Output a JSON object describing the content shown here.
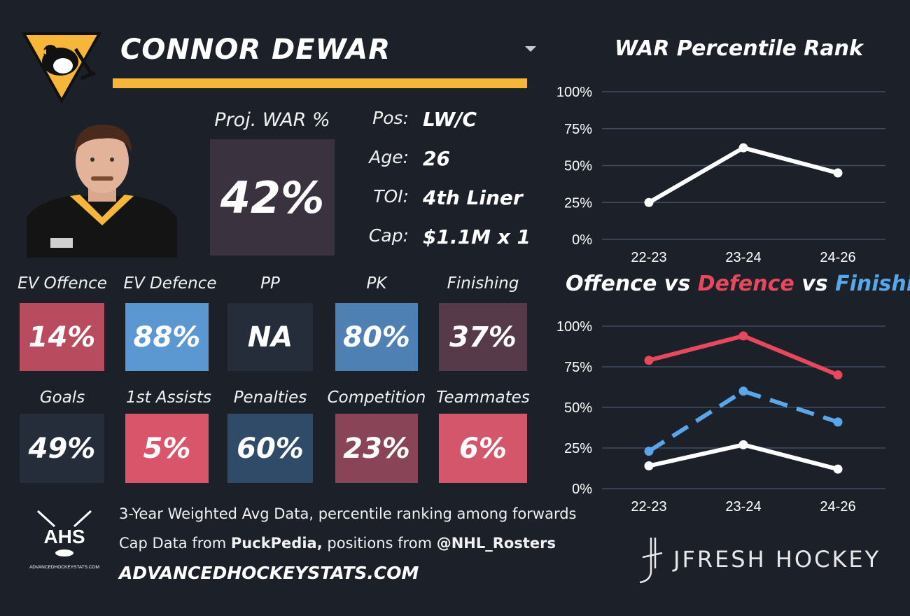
{
  "header": {
    "player_name": "CONNOR DEWAR",
    "team_logo": "penguins-logo",
    "accent_color": "#f6b63a"
  },
  "proj_war": {
    "label": "Proj. WAR %",
    "value": "42%"
  },
  "info": [
    {
      "key": "Pos:",
      "value": "LW/C"
    },
    {
      "key": "Age:",
      "value": "26"
    },
    {
      "key": "TOI:",
      "value": "4th Liner"
    },
    {
      "key": "Cap:",
      "value": "$1.1M x 1"
    }
  ],
  "stats_row1": [
    {
      "label": "EV Offence",
      "value": "14%",
      "color": "#b84c5e"
    },
    {
      "label": "EV Defence",
      "value": "88%",
      "color": "#5b98d2"
    },
    {
      "label": "PP",
      "value": "NA",
      "color": "#252d3b"
    },
    {
      "label": "PK",
      "value": "80%",
      "color": "#4e80b4"
    },
    {
      "label": "Finishing",
      "value": "37%",
      "color": "#573a4a"
    }
  ],
  "stats_row2": [
    {
      "label": "Goals",
      "value": "49%",
      "color": "#252d3b"
    },
    {
      "label": "1st Assists",
      "value": "5%",
      "color": "#d9566a"
    },
    {
      "label": "Penalties",
      "value": "60%",
      "color": "#2f4b68"
    },
    {
      "label": "Competition",
      "value": "23%",
      "color": "#8a4457"
    },
    {
      "label": "Teammates",
      "value": "6%",
      "color": "#d4566a"
    }
  ],
  "footer": {
    "ahs_logo_text": "AHS",
    "ahs_logo_subtext": "ADVANCEDHOCKEYSTATS.COM",
    "line1": "3-Year Weighted Avg Data, percentile ranking among forwards",
    "line2_prefix": "Cap Data from ",
    "line2_source1": "PuckPedia,",
    "line2_mid": " positions from ",
    "line2_source2": "@NHL_Rosters",
    "site": "ADVANCEDHOCKEYSTATS.COM",
    "brand": "JFRESH HOCKEY"
  },
  "chart_data": [
    {
      "type": "line",
      "title": "WAR Percentile Rank",
      "categories": [
        "22-23",
        "23-24",
        "24-26"
      ],
      "series": [
        {
          "values": [
            25,
            62,
            45
          ],
          "color": "#ffffff",
          "dashed": false
        }
      ],
      "ylim": [
        0,
        100
      ],
      "yticks": [
        "0%",
        "25%",
        "50%",
        "75%",
        "100%"
      ],
      "grid": true
    },
    {
      "type": "line",
      "title_parts": [
        {
          "text": "Offence",
          "color": "#ffffff"
        },
        {
          "text": " vs ",
          "color": "#ffffff"
        },
        {
          "text": "Defence",
          "color": "#e8485e"
        },
        {
          "text": " vs ",
          "color": "#ffffff"
        },
        {
          "text": "Finishing",
          "color": "#5aa6ea"
        }
      ],
      "categories": [
        "22-23",
        "23-24",
        "24-26"
      ],
      "series": [
        {
          "values": [
            79,
            94,
            70
          ],
          "color": "#e8485e",
          "dashed": false
        },
        {
          "values": [
            23,
            60,
            41
          ],
          "color": "#5aa6ea",
          "dashed": true
        },
        {
          "values": [
            14,
            27,
            12
          ],
          "color": "#ffffff",
          "dashed": false
        }
      ],
      "ylim": [
        0,
        100
      ],
      "yticks": [
        "0%",
        "25%",
        "50%",
        "75%",
        "100%"
      ],
      "grid": true
    }
  ]
}
